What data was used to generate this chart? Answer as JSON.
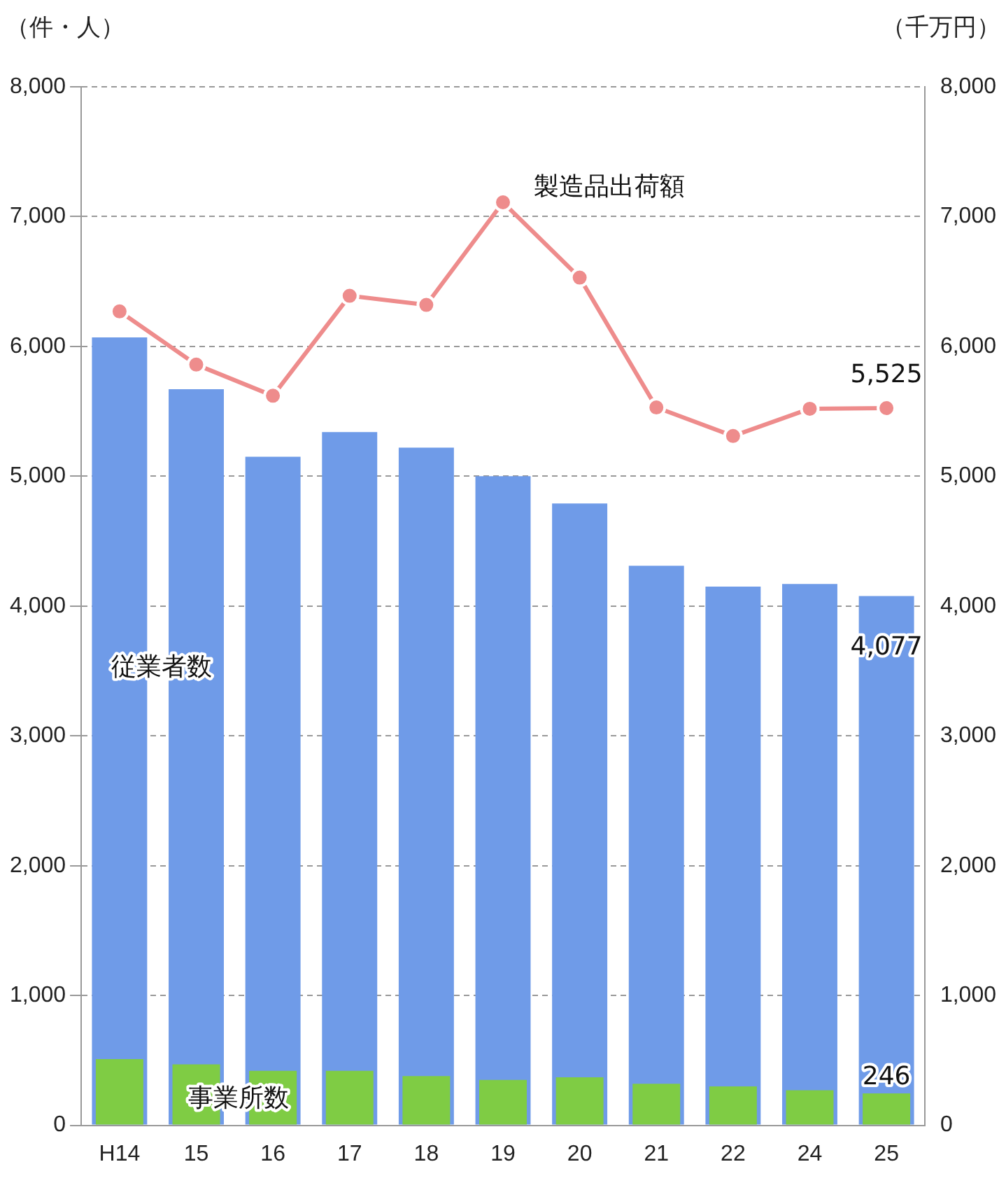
{
  "chart_data": {
    "type": "bar",
    "ylabel": "（件・人）",
    "y2label": "（千万円）",
    "categories": [
      "H14",
      "15",
      "16",
      "17",
      "18",
      "19",
      "20",
      "21",
      "22",
      "24",
      "25"
    ],
    "series": [
      {
        "name": "従業者数",
        "color": "#6f9be8",
        "values": [
          6070,
          5670,
          5150,
          5340,
          5220,
          5000,
          4790,
          4310,
          4150,
          4170,
          4077
        ],
        "value_labels": [
          null,
          null,
          null,
          null,
          null,
          null,
          null,
          null,
          null,
          null,
          "4,077"
        ]
      },
      {
        "name": "事業所数",
        "color": "#7fcc44",
        "values": [
          510,
          470,
          420,
          420,
          380,
          350,
          370,
          320,
          300,
          270,
          246
        ],
        "value_labels": [
          null,
          null,
          null,
          null,
          null,
          null,
          null,
          null,
          null,
          null,
          "246"
        ]
      },
      {
        "name": "製造品出荷額",
        "type": "line",
        "axis": "y2",
        "color": "#ee8c8c",
        "marker": "circle",
        "values": [
          6270,
          5860,
          5620,
          6390,
          6320,
          7110,
          6530,
          5530,
          5310,
          5520,
          5525
        ],
        "value_labels": [
          null,
          null,
          null,
          null,
          null,
          null,
          null,
          null,
          null,
          null,
          "5,525"
        ]
      }
    ],
    "ylim": [
      0,
      8000
    ],
    "yticks": [
      0,
      {
        "value": 1000,
        "label": "1,000"
      },
      {
        "value": 2000,
        "label": "2,000"
      },
      {
        "value": 3000,
        "label": "3,000"
      },
      {
        "value": 4000,
        "label": "4,000"
      },
      {
        "value": 5000,
        "label": "5,000"
      },
      {
        "value": 6000,
        "label": "6,000"
      },
      {
        "value": 7000,
        "label": "7,000"
      },
      {
        "value": 8000,
        "label": "8,000"
      }
    ],
    "y2lim": [
      0,
      8000
    ],
    "y2ticks": [
      0,
      {
        "value": 1000,
        "label": "1,000"
      },
      {
        "value": 2000,
        "label": "2,000"
      },
      {
        "value": 3000,
        "label": "3,000"
      },
      {
        "value": 4000,
        "label": "4,000"
      },
      {
        "value": 5000,
        "label": "5,000"
      },
      {
        "value": 6000,
        "label": "6,000"
      },
      {
        "value": 7000,
        "label": "7,000"
      },
      {
        "value": 8000,
        "label": "8,000"
      }
    ],
    "grid": "y",
    "line_style": "solid",
    "legend": false
  }
}
